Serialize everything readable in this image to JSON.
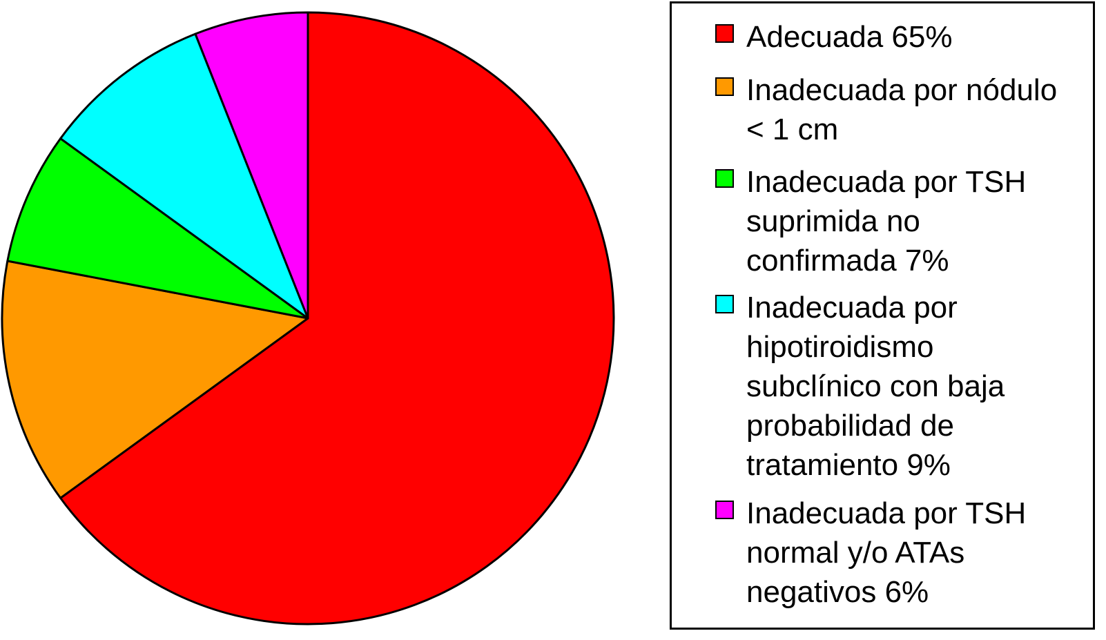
{
  "chart_data": {
    "type": "pie",
    "title": "",
    "start_angle": "12 o'clock",
    "direction": "clockwise",
    "slices": [
      {
        "label": "Adecuada 65%",
        "value": 65,
        "color": "#ff0000"
      },
      {
        "label": "Inadecuada por nódulo\n< 1 cm",
        "value": 13,
        "color": "#ff9900"
      },
      {
        "label": "Inadecuada por TSH\nsuprimida no\nconfirmada 7%",
        "value": 7,
        "color": "#00ff00"
      },
      {
        "label": "Inadecuada por\nhipotiroidismo\nsubclínico con baja\nprobabilidad de\ntratamiento 9%",
        "value": 9,
        "color": "#00ffff"
      },
      {
        "label": "Inadecuada por TSH\nnormal y/o ATAs\nnegativos 6%",
        "value": 6,
        "color": "#ff00ff"
      }
    ],
    "legend_position": "right"
  }
}
